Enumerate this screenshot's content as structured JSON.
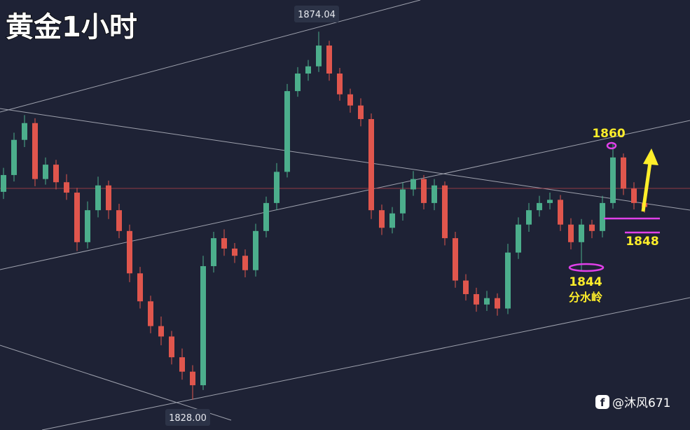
{
  "chart_data": {
    "type": "candlestick",
    "title": "黄金1小时",
    "high_label": "1874.04",
    "low_label": "1828.00",
    "watermark": "@沐风671",
    "annotations": [
      "1860",
      "1848",
      "1844",
      "分水岭"
    ],
    "up_color": "#4cae8c",
    "down_color": "#e0564d",
    "ylim": [
      1824.2,
      1878.0
    ],
    "open": [
      1854.0,
      1856.1,
      1860.5,
      1862.6,
      1855.6,
      1857.4,
      1855.2,
      1853.9,
      1847.7,
      1851.7,
      1854.8,
      1851.7,
      1849.1,
      1843.8,
      1840.3,
      1837.2,
      1835.9,
      1833.3,
      1831.5,
      1829.8,
      1844.7,
      1848.2,
      1846.9,
      1846.0,
      1844.2,
      1849.1,
      1852.6,
      1856.5,
      1866.6,
      1868.8,
      1869.7,
      1872.3,
      1868.8,
      1866.2,
      1864.8,
      1863.1,
      1851.7,
      1849.5,
      1851.3,
      1854.3,
      1855.6,
      1852.6,
      1854.8,
      1848.2,
      1842.9,
      1841.2,
      1839.9,
      1840.7,
      1839.4,
      1846.4,
      1849.9,
      1851.7,
      1852.6,
      1853.0,
      1849.9,
      1847.7,
      1849.9,
      1849.1,
      1852.6,
      1858.3,
      1854.4,
      1852.6
    ],
    "high": [
      1857.0,
      1861.4,
      1863.6,
      1863.2,
      1858.3,
      1858.0,
      1856.2,
      1854.5,
      1852.8,
      1855.9,
      1855.4,
      1852.5,
      1849.9,
      1844.6,
      1841.0,
      1838.4,
      1836.6,
      1834.4,
      1832.3,
      1846.0,
      1849.0,
      1849.3,
      1847.6,
      1846.8,
      1850.0,
      1853.4,
      1857.6,
      1867.5,
      1869.6,
      1870.5,
      1874.04,
      1872.9,
      1869.5,
      1866.9,
      1865.7,
      1863.8,
      1852.4,
      1852.1,
      1855.2,
      1856.6,
      1856.1,
      1855.6,
      1855.3,
      1849.0,
      1843.7,
      1842.0,
      1841.6,
      1841.3,
      1847.5,
      1850.8,
      1852.6,
      1853.5,
      1853.9,
      1853.6,
      1850.7,
      1850.6,
      1850.5,
      1853.5,
      1860.0,
      1858.8,
      1855.2,
      1853.3
    ],
    "low": [
      1853.1,
      1855.3,
      1859.6,
      1854.7,
      1854.9,
      1854.3,
      1853.0,
      1846.6,
      1846.9,
      1850.8,
      1850.6,
      1848.2,
      1842.7,
      1839.4,
      1836.3,
      1834.8,
      1832.4,
      1830.5,
      1828.0,
      1829.2,
      1843.9,
      1846.0,
      1845.1,
      1843.3,
      1843.4,
      1848.3,
      1851.7,
      1855.8,
      1865.9,
      1867.9,
      1869.0,
      1867.9,
      1865.4,
      1863.9,
      1862.2,
      1850.6,
      1848.6,
      1848.8,
      1850.4,
      1853.5,
      1851.8,
      1851.7,
      1847.3,
      1842.0,
      1840.4,
      1839.0,
      1839.1,
      1838.5,
      1838.7,
      1845.6,
      1849.0,
      1850.9,
      1851.8,
      1849.1,
      1846.8,
      1844.0,
      1848.2,
      1848.3,
      1851.9,
      1853.6,
      1851.8,
      1851.4
    ],
    "close": [
      1856.1,
      1860.5,
      1862.6,
      1855.6,
      1857.4,
      1855.2,
      1853.9,
      1847.7,
      1851.7,
      1854.8,
      1851.7,
      1849.1,
      1843.8,
      1840.3,
      1837.2,
      1835.9,
      1833.3,
      1831.5,
      1829.8,
      1844.7,
      1848.2,
      1846.9,
      1846.0,
      1844.2,
      1849.1,
      1852.6,
      1856.5,
      1866.6,
      1868.8,
      1869.7,
      1872.3,
      1868.8,
      1866.2,
      1864.8,
      1863.1,
      1851.7,
      1849.5,
      1851.3,
      1854.3,
      1855.6,
      1852.6,
      1854.8,
      1848.2,
      1842.9,
      1841.2,
      1839.9,
      1840.7,
      1839.4,
      1846.4,
      1849.9,
      1851.7,
      1852.6,
      1853.0,
      1849.9,
      1847.7,
      1849.9,
      1849.1,
      1852.6,
      1858.3,
      1854.4,
      1852.6,
      1852.1
    ]
  }
}
